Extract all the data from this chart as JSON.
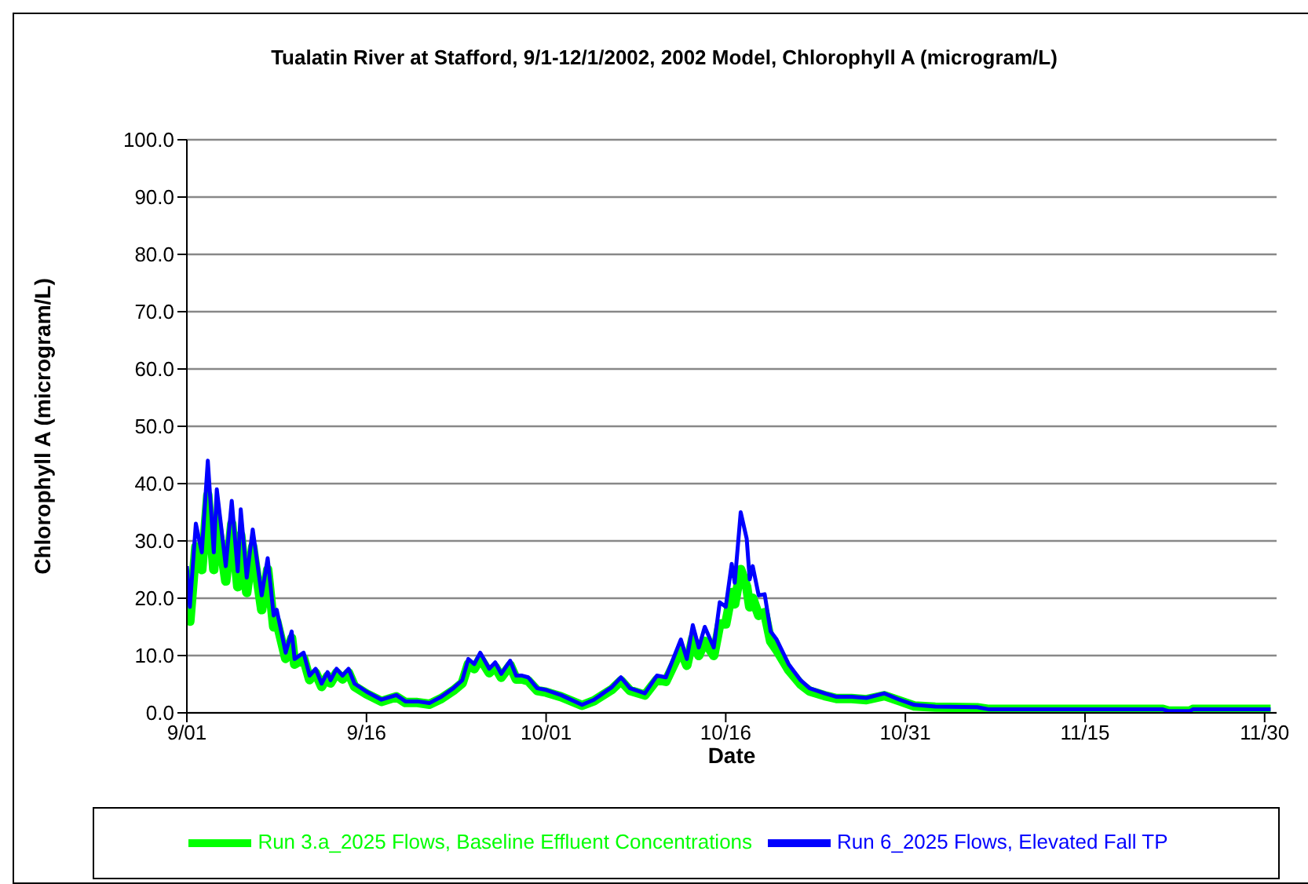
{
  "chart_data": {
    "type": "line",
    "title": "Tualatin River at Stafford, 9/1-12/1/2002, 2002 Model, Chlorophyll A (microgram/L)",
    "xlabel": "Date",
    "ylabel": "Chlorophyll A (microgram/L)",
    "x": [
      "2002-09-01T00:00",
      "2002-09-01T06:00",
      "2002-09-01T18:00",
      "2002-09-02T06:00",
      "2002-09-02T18:00",
      "2002-09-03T06:00",
      "2002-09-03T12:00",
      "2002-09-04T06:00",
      "2002-09-04T18:00",
      "2002-09-05T06:00",
      "2002-09-05T12:00",
      "2002-09-06T00:00",
      "2002-09-06T12:00",
      "2002-09-07T06:00",
      "2002-09-07T18:00",
      "2002-09-08T06:00",
      "2002-09-08T12:00",
      "2002-09-09T06:00",
      "2002-09-09T18:00",
      "2002-09-10T00:00",
      "2002-09-10T18:00",
      "2002-09-11T06:00",
      "2002-09-11T18:00",
      "2002-09-12T06:00",
      "2002-09-12T18:00",
      "2002-09-13T00:00",
      "2002-09-13T12:00",
      "2002-09-14T00:00",
      "2002-09-14T12:00",
      "2002-09-15T00:00",
      "2002-09-16T00:00",
      "2002-09-17T06:00",
      "2002-09-18T12:00",
      "2002-09-19T06:00",
      "2002-09-20T06:00",
      "2002-09-21T06:00",
      "2002-09-22T06:00",
      "2002-09-23T06:00",
      "2002-09-24T00:00",
      "2002-09-24T12:00",
      "2002-09-25T00:00",
      "2002-09-25T12:00",
      "2002-09-26T06:00",
      "2002-09-26T18:00",
      "2002-09-27T06:00",
      "2002-09-28T00:00",
      "2002-09-28T12:00",
      "2002-09-29T00:00",
      "2002-09-29T12:00",
      "2002-09-30T06:00",
      "2002-10-01T00:00",
      "2002-10-02T06:00",
      "2002-10-04T00:00",
      "2002-10-05T00:00",
      "2002-10-06T12:00",
      "2002-10-07T06:00",
      "2002-10-08T00:00",
      "2002-10-09T06:00",
      "2002-10-10T06:00",
      "2002-10-11T00:00",
      "2002-10-12T06:00",
      "2002-10-12T18:00",
      "2002-10-13T06:00",
      "2002-10-13T18:00",
      "2002-10-14T06:00",
      "2002-10-15T00:00",
      "2002-10-15T12:00",
      "2002-10-16T00:00",
      "2002-10-16T12:00",
      "2002-10-16T18:00",
      "2002-10-17T06:00",
      "2002-10-17T18:00",
      "2002-10-18T00:00",
      "2002-10-18T06:00",
      "2002-10-18T18:00",
      "2002-10-19T06:00",
      "2002-10-19T18:00",
      "2002-10-20T06:00",
      "2002-10-21T06:00",
      "2002-10-22T06:00",
      "2002-10-23T00:00",
      "2002-10-24T06:00",
      "2002-10-25T06:00",
      "2002-10-26T12:00",
      "2002-10-27T18:00",
      "2002-10-29T06:00",
      "2002-10-30T12:00",
      "2002-10-31T18:00",
      "2002-11-02T12:00",
      "2002-11-06T00:00",
      "2002-11-07T00:00",
      "2002-11-21T12:00",
      "2002-11-22T00:00",
      "2002-11-23T18:00",
      "2002-11-24T00:00",
      "2002-11-30T00:00",
      "2002-11-30T12:00"
    ],
    "series": [
      {
        "name": "Run 3.a_2025 Flows, Baseline Effluent Concentrations",
        "color": "#00ff00",
        "values": [
          22,
          16,
          29,
          25,
          38,
          25,
          34,
          23,
          33,
          22,
          31,
          21,
          29,
          18,
          25,
          15,
          16,
          9.5,
          13,
          8.5,
          9.5,
          5.8,
          7,
          4.6,
          6.4,
          5.2,
          7,
          5.9,
          7,
          4.6,
          3.3,
          2,
          2.8,
          1.8,
          1.8,
          1.5,
          2.5,
          3.9,
          5.2,
          8.5,
          7.7,
          9.5,
          7,
          8,
          6.2,
          8.3,
          5.9,
          5.9,
          5.6,
          3.9,
          3.6,
          2.8,
          1.3,
          2.1,
          4.1,
          5.6,
          3.9,
          3.1,
          5.8,
          5.5,
          11,
          8.3,
          13,
          10,
          12.5,
          10,
          15.5,
          15.5,
          21,
          19,
          25,
          22,
          18.5,
          20,
          17,
          17.5,
          12.5,
          11,
          7.5,
          5,
          3.8,
          3,
          2.5,
          2.5,
          2.3,
          3,
          2.1,
          1.2,
          1,
          0.9,
          0.6,
          0.6,
          0.3,
          0.3,
          0.6,
          0.6,
          0.6
        ]
      },
      {
        "name": "Run 6_2025 Flows, Elevated Fall TP",
        "color": "#0000ff",
        "values": [
          25.6,
          18.5,
          33,
          28,
          44,
          28,
          39,
          25.6,
          37,
          24.7,
          35.5,
          23.6,
          32,
          20.5,
          27,
          17,
          18,
          10.5,
          14.2,
          9.4,
          10.5,
          6.5,
          7.7,
          5.1,
          7.1,
          5.7,
          7.7,
          6.5,
          7.7,
          5.1,
          3.7,
          2.3,
          3.1,
          2,
          2,
          1.7,
          2.8,
          4.3,
          5.7,
          9.4,
          8.5,
          10.5,
          7.7,
          8.8,
          6.8,
          9.1,
          6.5,
          6.5,
          6.2,
          4.3,
          4,
          3.1,
          1.4,
          2.3,
          4.5,
          6.2,
          4.3,
          3.4,
          6.5,
          6.2,
          12.8,
          9.4,
          15.3,
          11.4,
          15,
          11.4,
          19.3,
          18.5,
          26,
          22.7,
          35,
          30.4,
          23.3,
          25.6,
          20.5,
          20.7,
          14.2,
          12.8,
          8.5,
          5.7,
          4.3,
          3.4,
          2.8,
          2.8,
          2.6,
          3.4,
          2.3,
          1.4,
          1.1,
          1,
          0.6,
          0.6,
          0.3,
          0.3,
          0.6,
          0.6,
          0.6
        ]
      }
    ],
    "xlim": [
      "2002-09-01",
      "2002-12-01"
    ],
    "xticks": [
      {
        "value": "2002-09-01",
        "label": "9/01"
      },
      {
        "value": "2002-09-16",
        "label": "9/16"
      },
      {
        "value": "2002-10-01",
        "label": "10/01"
      },
      {
        "value": "2002-10-16",
        "label": "10/16"
      },
      {
        "value": "2002-10-31",
        "label": "10/31"
      },
      {
        "value": "2002-11-15",
        "label": "11/15"
      },
      {
        "value": "2002-11-30",
        "label": "11/30"
      }
    ],
    "ylim": [
      0,
      100
    ],
    "yticks": [
      {
        "value": 0,
        "label": "0.0"
      },
      {
        "value": 10,
        "label": "10.0"
      },
      {
        "value": 20,
        "label": "20.0"
      },
      {
        "value": 30,
        "label": "30.0"
      },
      {
        "value": 40,
        "label": "40.0"
      },
      {
        "value": 50,
        "label": "50.0"
      },
      {
        "value": 60,
        "label": "60.0"
      },
      {
        "value": 70,
        "label": "70.0"
      },
      {
        "value": 80,
        "label": "80.0"
      },
      {
        "value": 90,
        "label": "90.0"
      },
      {
        "value": 100,
        "label": "100.0"
      }
    ],
    "grid": "y",
    "legend": "bottom",
    "marker": "none",
    "line_style": "solid"
  }
}
